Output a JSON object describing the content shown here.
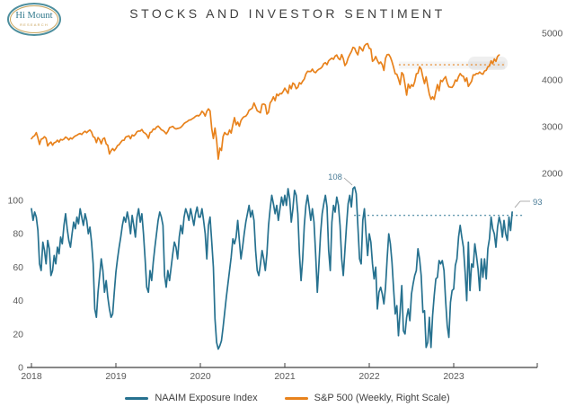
{
  "header": {
    "title": "STOCKS AND INVESTOR SENTIMENT"
  },
  "logo": {
    "line1": "Hi Mount",
    "line2": "RESEARCH"
  },
  "colors": {
    "naaim": "#26718F",
    "sp500": "#E8821C",
    "axis_text": "#595959"
  },
  "chart_data": {
    "type": "line",
    "title": "STOCKS AND INVESTOR SENTIMENT",
    "x_axis": {
      "ticks": [
        2018,
        2019,
        2020,
        2021,
        2022,
        2023
      ],
      "range": [
        2017.95,
        2024.0
      ]
    },
    "left_axis": {
      "ticks": [
        100,
        80,
        60,
        40,
        20,
        0
      ],
      "range": [
        0,
        100
      ]
    },
    "right_axis": {
      "ticks": [
        5000,
        4000,
        3000,
        2000
      ],
      "range": [
        2000,
        5000
      ]
    },
    "grid": false,
    "legend_position": "bottom",
    "series": [
      {
        "name": "NAAIM Exposure Index",
        "axis": "left",
        "color": "#26718F",
        "start_year": 2018,
        "points_per_year": 52,
        "values": [
          95,
          88,
          93,
          90,
          82,
          62,
          58,
          75,
          70,
          62,
          76,
          71,
          55,
          58,
          67,
          62,
          72,
          68,
          78,
          74,
          85,
          92,
          83,
          76,
          72,
          80,
          87,
          83,
          90,
          86,
          95,
          90,
          85,
          92,
          88,
          80,
          84,
          75,
          62,
          35,
          30,
          45,
          55,
          65,
          58,
          45,
          52,
          42,
          35,
          30,
          32,
          45,
          57,
          65,
          72,
          78,
          85,
          90,
          87,
          93,
          88,
          80,
          91,
          85,
          78,
          90,
          95,
          87,
          92,
          80,
          65,
          48,
          45,
          58,
          52,
          63,
          72,
          80,
          88,
          93,
          90,
          85,
          55,
          48,
          58,
          52,
          60,
          68,
          75,
          72,
          65,
          78,
          85,
          80,
          90,
          95,
          92,
          88,
          95,
          90,
          85,
          92,
          96,
          90,
          90,
          95,
          88,
          80,
          65,
          85,
          90,
          75,
          60,
          29,
          15,
          11,
          13,
          16,
          24,
          33,
          42,
          50,
          58,
          66,
          77,
          74,
          78,
          88,
          76,
          65,
          72,
          80,
          87,
          92,
          97,
          90,
          94,
          88,
          70,
          58,
          55,
          62,
          70,
          65,
          58,
          68,
          85,
          95,
          103,
          98,
          92,
          97,
          88,
          95,
          102,
          97,
          103,
          97,
          107,
          101,
          87,
          95,
          106,
          103,
          92,
          68,
          52,
          65,
          85,
          97,
          103,
          96,
          88,
          95,
          87,
          68,
          45,
          62,
          80,
          92,
          98,
          103,
          96,
          70,
          58,
          87,
          97,
          93,
          102,
          97,
          85,
          65,
          55,
          70,
          85,
          98,
          103,
          96,
          107,
          108,
          104,
          85,
          65,
          62,
          88,
          95,
          80,
          67,
          80,
          75,
          62,
          53,
          60,
          35,
          45,
          48,
          44,
          38,
          48,
          65,
          80,
          74,
          63,
          47,
          32,
          37,
          19,
          33,
          49,
          22,
          20,
          30,
          35,
          28,
          44,
          50,
          55,
          58,
          71,
          65,
          55,
          33,
          34,
          12,
          15,
          30,
          12,
          31,
          43,
          53,
          54,
          64,
          62,
          64,
          58,
          40,
          25,
          18,
          39,
          46,
          47,
          61,
          65,
          78,
          85,
          78,
          72,
          57,
          40,
          75,
          46,
          62,
          60,
          74,
          67,
          59,
          46,
          65,
          54,
          65,
          53,
          71,
          77,
          90,
          83,
          80,
          72,
          84,
          90,
          86,
          78,
          88,
          80,
          76,
          90,
          82,
          93
        ]
      },
      {
        "name": "S&P 500 (Weekly, Right Scale)",
        "axis": "right",
        "color": "#E8821C",
        "start_year": 2018,
        "points_per_year": 52,
        "values": [
          2743,
          2786,
          2810,
          2873,
          2762,
          2620,
          2732,
          2747,
          2787,
          2752,
          2588,
          2641,
          2669,
          2604,
          2656,
          2670,
          2712,
          2670,
          2728,
          2713,
          2735,
          2779,
          2755,
          2718,
          2760,
          2737,
          2775,
          2801,
          2818,
          2840,
          2853,
          2833,
          2875,
          2902,
          2872,
          2905,
          2930,
          2885,
          2786,
          2767,
          2659,
          2768,
          2723,
          2632,
          2737,
          2760,
          2633,
          2600,
          2416,
          2486,
          2531,
          2486,
          2532,
          2596,
          2616,
          2665,
          2707,
          2708,
          2776,
          2793,
          2803,
          2743,
          2822,
          2801,
          2834,
          2893,
          2907,
          2905,
          2940,
          2881,
          2860,
          2826,
          2752,
          2873,
          2887,
          2950,
          2942,
          2990,
          3014,
          2977,
          2932,
          2919,
          2889,
          2847,
          2898,
          2979,
          2992,
          3008,
          2970,
          2952,
          2962,
          2970,
          2986,
          3023,
          3067,
          3093,
          3110,
          3141,
          3146,
          3169,
          3191,
          3221,
          3240,
          3230,
          3265,
          3330,
          3296,
          3226,
          3328,
          3380,
          3338,
          2954,
          2747,
          2972,
          2711,
          2305,
          2542,
          2490,
          2790,
          2875,
          2837,
          2831,
          2930,
          2864,
          3044,
          3194,
          3041,
          3098,
          3009,
          3130,
          3185,
          3215,
          3225,
          3272,
          3351,
          3373,
          3397,
          3508,
          3427,
          3341,
          3319,
          3298,
          3477,
          3484,
          3465,
          3270,
          3310,
          3510,
          3558,
          3638,
          3558,
          3699,
          3663,
          3709,
          3703,
          3756,
          3825,
          3768,
          3714,
          3887,
          3811,
          3935,
          3907,
          3811,
          3842,
          3943,
          3913,
          3975,
          4020,
          4129,
          4185,
          4180,
          4181,
          4233,
          4174,
          4156,
          4204,
          4230,
          4247,
          4280,
          4352,
          4370,
          4327,
          4412,
          4442,
          4468,
          4442,
          4509,
          4535,
          4459,
          4433,
          4545,
          4455,
          4308,
          4357,
          4471,
          4545,
          4605,
          4698,
          4683,
          4595,
          4538,
          4712,
          4669,
          4621,
          4726,
          4766,
          4778,
          4677,
          4663,
          4398,
          4432,
          4501,
          4419,
          4349,
          4385,
          4329,
          4204,
          4463,
          4543,
          4546,
          4488,
          4393,
          4272,
          4132,
          4123,
          4024,
          3901,
          4158,
          4109,
          3901,
          3675,
          3912,
          3825,
          3899,
          3863,
          3962,
          4130,
          4145,
          4280,
          4228,
          4058,
          3924,
          4067,
          3873,
          3693,
          3586,
          3640,
          3583,
          3753,
          3901,
          3771,
          3993,
          3965,
          4026,
          4072,
          3934,
          3852,
          3845,
          3840,
          3895,
          3999,
          3973,
          4071,
          4136,
          4090,
          4079,
          3970,
          4045,
          3862,
          3917,
          3971,
          4109,
          4105,
          4138,
          4134,
          4169,
          4136,
          4124,
          4192,
          4206,
          4282,
          4299,
          4410,
          4348,
          4450,
          4399,
          4505,
          4536
        ]
      }
    ],
    "reference_lines": [
      {
        "series": "sp500",
        "value": 4325,
        "x_start": 2022.35,
        "x_end": 2023.6,
        "style": "dotted",
        "color": "#E8821C"
      },
      {
        "series": "naaim",
        "value": 91,
        "x_start": 2021.82,
        "x_end": 2023.81,
        "style": "dotted",
        "color": "#26718F"
      }
    ],
    "annotations": [
      {
        "text": "108",
        "x": 2021.83,
        "y": 108
      },
      {
        "text": "93",
        "x": 2023.69,
        "y": 93
      }
    ],
    "legend": [
      {
        "label": "NAAIM Exposure Index",
        "color": "#26718F"
      },
      {
        "label": "S&P 500 (Weekly, Right Scale)",
        "color": "#E8821C"
      }
    ]
  }
}
